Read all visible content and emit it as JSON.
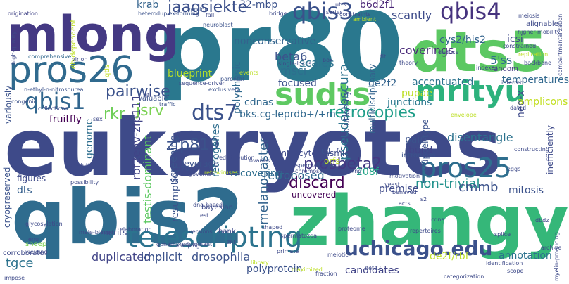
{
  "words": [
    {
      "text": "eukaryotes",
      "color": "#3e4a89"
    },
    {
      "text": "pr80",
      "color": "#2a788e"
    },
    {
      "text": "qbis2",
      "color": "#2f6c8e"
    },
    {
      "text": "zhangy",
      "color": "#35b779"
    },
    {
      "text": "mlong",
      "color": "#443983"
    },
    {
      "text": "dts5",
      "color": "#5cc863"
    },
    {
      "text": "pros26",
      "color": "#306a8e"
    },
    {
      "text": "sudts",
      "color": "#5ec962"
    },
    {
      "text": "mrityu",
      "color": "#2db27d"
    },
    {
      "text": "telescripting",
      "color": "#2c738e"
    },
    {
      "text": "uchicago.edu",
      "color": "#3b518b"
    },
    {
      "text": "pros25",
      "color": "#2e6e8e"
    },
    {
      "text": "qbis3",
      "color": "#3b518b"
    },
    {
      "text": "qbis4",
      "color": "#46337e"
    },
    {
      "text": "qbis1",
      "color": "#31668e"
    },
    {
      "text": "dts7",
      "color": "#3b528b"
    },
    {
      "text": "jaagsiekte",
      "color": "#3c508b"
    },
    {
      "text": "krab",
      "color": "#33638d"
    },
    {
      "text": "32-mbp",
      "color": "#3b528b"
    },
    {
      "text": "b6d2f1",
      "color": "#482576"
    },
    {
      "text": "scantly",
      "color": "#3e4c8a"
    },
    {
      "text": "icsi",
      "color": "#3f4788"
    },
    {
      "text": "cys2/his2",
      "color": "#33638d"
    },
    {
      "text": "coverings",
      "color": "#482878"
    },
    {
      "text": "nonconservative",
      "color": "#33638d"
    },
    {
      "text": "5'ss",
      "color": "#306a8e"
    },
    {
      "text": "random",
      "color": "#443a83"
    },
    {
      "text": "beta6",
      "color": "#3b528b"
    },
    {
      "text": "scales",
      "color": "#2c728e"
    },
    {
      "text": "msci",
      "color": "#2e6e8e"
    },
    {
      "text": "pseudoobscura",
      "color": "#2c738e"
    },
    {
      "text": "polyphasic",
      "color": "#306a8e"
    },
    {
      "text": "focused",
      "color": "#3b528b"
    },
    {
      "text": "pairwise",
      "color": "#3b528b"
    },
    {
      "text": "de2f2",
      "color": "#33638d"
    },
    {
      "text": "accentuated",
      "color": "#2c728e"
    },
    {
      "text": "retrocopies",
      "color": "#1f9e89"
    },
    {
      "text": "jsrv",
      "color": "#7ad151"
    },
    {
      "text": "rkr",
      "color": "#6ece58"
    },
    {
      "text": "fruitfly",
      "color": "#440154"
    },
    {
      "text": "bks.cg-leprdb+/+m",
      "color": "#31688e"
    },
    {
      "text": "cdnas",
      "color": "#31688e"
    },
    {
      "text": "pupae",
      "color": "#bddf26"
    },
    {
      "text": "junctions",
      "color": "#2a788e"
    },
    {
      "text": "temperatures",
      "color": "#31688e"
    },
    {
      "text": "amplicons",
      "color": "#c2df23"
    },
    {
      "text": "genome",
      "color": "#2e6e8e"
    },
    {
      "text": "zfp819",
      "color": "#3b528b"
    },
    {
      "text": "rbf2env-zfp111",
      "color": "#414487"
    },
    {
      "text": "testis-dominant",
      "color": "#5ec962"
    },
    {
      "text": "prosbeta2",
      "color": "#443983"
    },
    {
      "text": "recovering",
      "color": "#2e6e8e"
    },
    {
      "text": "melanogaster",
      "color": "#33638d"
    },
    {
      "text": "retroposed",
      "color": "#31688e"
    },
    {
      "text": "discard",
      "color": "#440154"
    },
    {
      "text": "208f",
      "color": "#20a386"
    },
    {
      "text": "non-trivial",
      "color": "#21918c"
    },
    {
      "text": "premise",
      "color": "#3e4a89"
    },
    {
      "text": "cmmb",
      "color": "#3b528b"
    },
    {
      "text": "mitosis",
      "color": "#3b528b"
    },
    {
      "text": "build",
      "color": "#414487"
    },
    {
      "text": "pair",
      "color": "#3b528b"
    },
    {
      "text": "disentangle",
      "color": "#2c728e"
    },
    {
      "text": "multidisciplinary",
      "color": "#33638d"
    },
    {
      "text": "neo-x",
      "color": "#3e4a89"
    },
    {
      "text": "inefficiently",
      "color": "#3e4a89"
    },
    {
      "text": "cryopreserved",
      "color": "#3b528b"
    },
    {
      "text": "dts",
      "color": "#355f8d"
    },
    {
      "text": "figures",
      "color": "#3e4a89"
    },
    {
      "text": "screening",
      "color": "#3b528b"
    },
    {
      "text": "resumption",
      "color": "#3b528b"
    },
    {
      "text": "retrogenes",
      "color": "#2e6e8e"
    },
    {
      "text": "tgce",
      "color": "#2c738e"
    },
    {
      "text": "duplicated",
      "color": "#414487"
    },
    {
      "text": "implicit",
      "color": "#3b528b"
    },
    {
      "text": "drosophila",
      "color": "#3b528b"
    },
    {
      "text": "polyprotein",
      "color": "#3b528b"
    },
    {
      "text": "candidates",
      "color": "#414487"
    },
    {
      "text": "de2f/rbf",
      "color": "#bddf26"
    },
    {
      "text": "annotation",
      "color": "#2c728e"
    },
    {
      "text": "uncovered",
      "color": "#440154"
    },
    {
      "text": "merits",
      "color": "#3e4a89"
    },
    {
      "text": "corroborate",
      "color": "#3e4a89"
    },
    {
      "text": "sheep",
      "color": "#7ad151"
    },
    {
      "text": "intracytoplasmic",
      "color": "#3e4a89"
    },
    {
      "text": "evolutionary",
      "color": "#3b528b"
    },
    {
      "text": "leverage",
      "color": "#3b528b"
    },
    {
      "text": "p70",
      "color": "#3b528b"
    },
    {
      "text": "u1",
      "color": "#3b528b"
    },
    {
      "text": "orfs",
      "color": "#bddf26"
    },
    {
      "text": "blueprint",
      "color": "#b5de2b"
    },
    {
      "text": "valuable",
      "color": "#3b528b"
    },
    {
      "text": "variously",
      "color": "#3b528b"
    },
    {
      "text": "version",
      "color": "#3b528b"
    },
    {
      "text": "heteroduplex-forming",
      "color": "#3b528b"
    },
    {
      "text": "origination",
      "color": "#414487"
    },
    {
      "text": "neuroblast",
      "color": "#3b528b"
    },
    {
      "text": "db-dependent",
      "color": "#bddf26"
    },
    {
      "text": "theory",
      "color": "#3e4a89"
    },
    {
      "text": "high-quality",
      "color": "#3e4a89"
    },
    {
      "text": "comprehensive",
      "color": "#31688e"
    },
    {
      "text": "virion",
      "color": "#3e4a89"
    },
    {
      "text": "n-ethyl-n-nitrosourea",
      "color": "#3b528b"
    },
    {
      "text": "qtls",
      "color": "#c2df23"
    },
    {
      "text": "congenic",
      "color": "#3b528b"
    },
    {
      "text": "traffic",
      "color": "#3b528b"
    },
    {
      "text": "parental",
      "color": "#3b528b"
    },
    {
      "text": "exclusively",
      "color": "#3b528b"
    },
    {
      "text": "sequence-driven",
      "color": "#3e4a89"
    },
    {
      "text": "single-locus",
      "color": "#3e4a89"
    },
    {
      "text": "box",
      "color": "#3e4a89"
    },
    {
      "text": "fit",
      "color": "#3e4a89"
    },
    {
      "text": "deduce",
      "color": "#3e4a89"
    },
    {
      "text": "indexes",
      "color": "#3e4a89"
    },
    {
      "text": "alignable",
      "color": "#3e4a89"
    },
    {
      "text": "higher-mobility",
      "color": "#3e4a89"
    },
    {
      "text": "replication",
      "color": "#bddf26"
    },
    {
      "text": "backbone",
      "color": "#3e4a89"
    },
    {
      "text": "compartmentalization",
      "color": "#3e4a89"
    },
    {
      "text": "constrained",
      "color": "#3e4a89"
    },
    {
      "text": "spermatogenic",
      "color": "#3e4a89"
    },
    {
      "text": "bayesian",
      "color": "#3e4a89"
    },
    {
      "text": "est",
      "color": "#3e4a89"
    },
    {
      "text": "bank",
      "color": "#3e4a89"
    },
    {
      "text": "znf",
      "color": "#3e4a89"
    },
    {
      "text": "reasoning",
      "color": "#3e4a89"
    },
    {
      "text": "motivation",
      "color": "#3e4a89"
    },
    {
      "text": "intronless",
      "color": "#3b528b"
    },
    {
      "text": "yeast",
      "color": "#3e4a89"
    },
    {
      "text": "behaved",
      "color": "#3e4a89"
    },
    {
      "text": "acts",
      "color": "#3e4a89"
    },
    {
      "text": "cdna",
      "color": "#3e4a89"
    },
    {
      "text": "eggs",
      "color": "#3e4a89"
    },
    {
      "text": "myelin-producing",
      "color": "#3e4a89"
    },
    {
      "text": "archive",
      "color": "#3e4a89"
    },
    {
      "text": "scope",
      "color": "#3e4a89"
    },
    {
      "text": "identification",
      "color": "#3e4a89"
    },
    {
      "text": "categorization",
      "color": "#3e4a89"
    },
    {
      "text": "fraction",
      "color": "#3e4a89"
    },
    {
      "text": "beta2",
      "color": "#3e4a89"
    },
    {
      "text": "meiotic",
      "color": "#3e4a89"
    },
    {
      "text": "library",
      "color": "#bddf26"
    },
    {
      "text": "primate",
      "color": "#3e4a89"
    },
    {
      "text": "spermatozoa",
      "color": "#3e4a89"
    },
    {
      "text": "shaped",
      "color": "#3e4a89"
    },
    {
      "text": "versions",
      "color": "#3e4a89"
    },
    {
      "text": "capping",
      "color": "#3e4a89"
    },
    {
      "text": "elaboration",
      "color": "#3e4a89"
    },
    {
      "text": "male-biased",
      "color": "#3e4a89"
    },
    {
      "text": "yielding",
      "color": "#3e4a89"
    },
    {
      "text": "enu",
      "color": "#3e4a89"
    },
    {
      "text": "glycosylation",
      "color": "#3e4a89"
    },
    {
      "text": "impose",
      "color": "#3e4a89"
    },
    {
      "text": "inferred",
      "color": "#3e4a89"
    },
    {
      "text": "redistribution",
      "color": "#3e4a89"
    },
    {
      "text": "ovaries",
      "color": "#3e4a89"
    },
    {
      "text": "inter-chromosomal",
      "color": "#3e4a89"
    },
    {
      "text": "governs",
      "color": "#3e4a89"
    },
    {
      "text": "constructing",
      "color": "#3e4a89"
    },
    {
      "text": "dated",
      "color": "#3e4a89"
    },
    {
      "text": "meiosis",
      "color": "#3e4a89"
    },
    {
      "text": "ambient",
      "color": "#bddf26"
    },
    {
      "text": "series",
      "color": "#3e4a89"
    },
    {
      "text": "constraints",
      "color": "#3e4a89"
    },
    {
      "text": "fall",
      "color": "#3e4a89"
    },
    {
      "text": "utrs",
      "color": "#3e4a89"
    },
    {
      "text": "collections",
      "color": "#3e4a89"
    },
    {
      "text": "possibility",
      "color": "#3e4a89"
    },
    {
      "text": "evolution",
      "color": "#3e4a89"
    },
    {
      "text": "repertoires",
      "color": "#3e4a89"
    },
    {
      "text": "proteome",
      "color": "#3e4a89"
    },
    {
      "text": "gonad-predominant",
      "color": "#3e4a89"
    },
    {
      "text": "maximized",
      "color": "#bddf26"
    },
    {
      "text": "events",
      "color": "#bddf26"
    },
    {
      "text": "qtl",
      "color": "#3e4a89"
    },
    {
      "text": "sex",
      "color": "#3e4a89"
    },
    {
      "text": "f2",
      "color": "#3e4a89"
    },
    {
      "text": "s2",
      "color": "#3e4a89"
    },
    {
      "text": "krüppel-type",
      "color": "#3b528b"
    },
    {
      "text": "dbdz",
      "color": "#3e4a89"
    },
    {
      "text": "splice",
      "color": "#3e4a89"
    },
    {
      "text": "bridge",
      "color": "#3e4a89"
    },
    {
      "text": "envelope",
      "color": "#bddf26"
    },
    {
      "text": "dna-based",
      "color": "#3e4a89"
    },
    {
      "text": "retroviruses",
      "color": "#bddf26"
    }
  ]
}
